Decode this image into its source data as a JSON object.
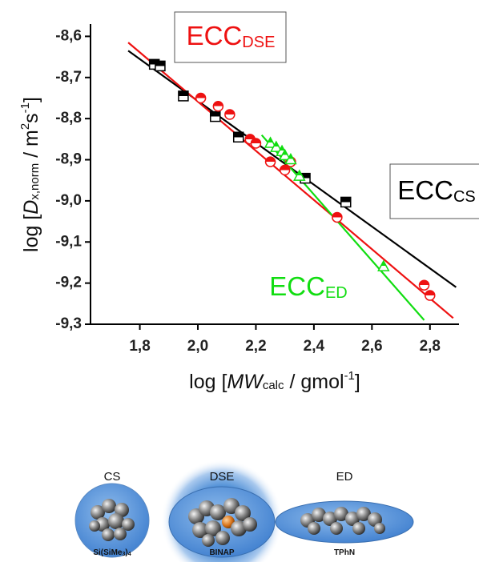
{
  "chart_data": {
    "type": "scatter",
    "xlabel": [
      "log [",
      "MW",
      "calc",
      " / gmol",
      "-1",
      "]"
    ],
    "ylabel": [
      "log [",
      "D",
      "x,norm",
      " / m",
      "2",
      "s",
      "-1",
      "]"
    ],
    "xlim": [
      1.63,
      2.9
    ],
    "ylim": [
      -9.3,
      -8.57
    ],
    "xticks": [
      {
        "value": 1.8,
        "label": "1,8"
      },
      {
        "value": 2.0,
        "label": "2,0"
      },
      {
        "value": 2.2,
        "label": "2,2"
      },
      {
        "value": 2.4,
        "label": "2,4"
      },
      {
        "value": 2.6,
        "label": "2,6"
      },
      {
        "value": 2.8,
        "label": "2,8"
      }
    ],
    "yticks": [
      {
        "value": -8.6,
        "label": "-8,6"
      },
      {
        "value": -8.7,
        "label": "-8,7"
      },
      {
        "value": -8.8,
        "label": "-8,8"
      },
      {
        "value": -8.9,
        "label": "-8,9"
      },
      {
        "value": -9.0,
        "label": "-9,0"
      },
      {
        "value": -9.1,
        "label": "-9,1"
      },
      {
        "value": -9.2,
        "label": "-9,2"
      },
      {
        "value": -9.3,
        "label": "-9,3"
      }
    ],
    "series": [
      {
        "name": "CS",
        "color": "#000000",
        "marker": "square",
        "x": [
          1.85,
          1.87,
          1.95,
          2.06,
          2.14,
          2.37,
          2.51
        ],
        "values": [
          -8.668,
          -8.672,
          -8.745,
          -8.795,
          -8.845,
          -8.945,
          -9.003
        ],
        "fit": {
          "x": [
            1.76,
            2.89
          ],
          "y": [
            -8.635,
            -9.21
          ]
        }
      },
      {
        "name": "DSE",
        "color": "#ee1111",
        "marker": "circle",
        "x": [
          2.01,
          2.07,
          2.11,
          2.18,
          2.2,
          2.25,
          2.3,
          2.32,
          2.48,
          2.78,
          2.8
        ],
        "values": [
          -8.75,
          -8.77,
          -8.79,
          -8.85,
          -8.86,
          -8.905,
          -8.925,
          -8.905,
          -9.04,
          -9.205,
          -9.23
        ],
        "fit": {
          "x": [
            1.76,
            2.88
          ],
          "y": [
            -8.615,
            -9.285
          ]
        }
      },
      {
        "name": "ED",
        "color": "#11dd11",
        "marker": "triangle",
        "x": [
          2.25,
          2.27,
          2.29,
          2.3,
          2.32,
          2.35,
          2.64
        ],
        "values": [
          -8.86,
          -8.87,
          -8.88,
          -8.89,
          -8.9,
          -8.94,
          -9.16
        ],
        "fit": {
          "x": [
            2.22,
            2.78
          ],
          "y": [
            -8.84,
            -9.29
          ]
        }
      }
    ],
    "annotations": [
      {
        "text": "ECC",
        "sub": "DSE",
        "color": "#ee1111",
        "box": true
      },
      {
        "text": "ECC",
        "sub": "CS",
        "color": "#000000",
        "box": true
      },
      {
        "text": "ECC",
        "sub": "ED",
        "color": "#11dd11",
        "box": false
      }
    ]
  },
  "illustration": {
    "labels": [
      "CS",
      "DSE",
      "ED"
    ],
    "molecules": [
      [
        "Si(SiMe",
        "3",
        ")",
        "4"
      ],
      [
        "BINAP"
      ],
      [
        "TPhN"
      ]
    ]
  }
}
